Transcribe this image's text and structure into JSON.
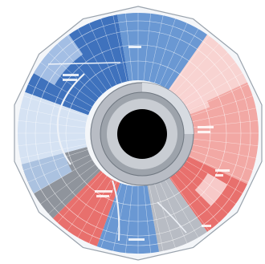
{
  "diagram": {
    "colors": {
      "blue_dark": "#3f72bd",
      "blue": "#6a98d3",
      "blue_light": "#aec6e8",
      "blue_pale": "#d5e2f3",
      "red": "#e8706d",
      "red_light": "#f2a8a4",
      "red_pale": "#f8d3d1",
      "grey": "#b8bcc4",
      "grey_dark": "#8f949c",
      "hole": "#000000",
      "outline": "#9aa3ad"
    }
  }
}
